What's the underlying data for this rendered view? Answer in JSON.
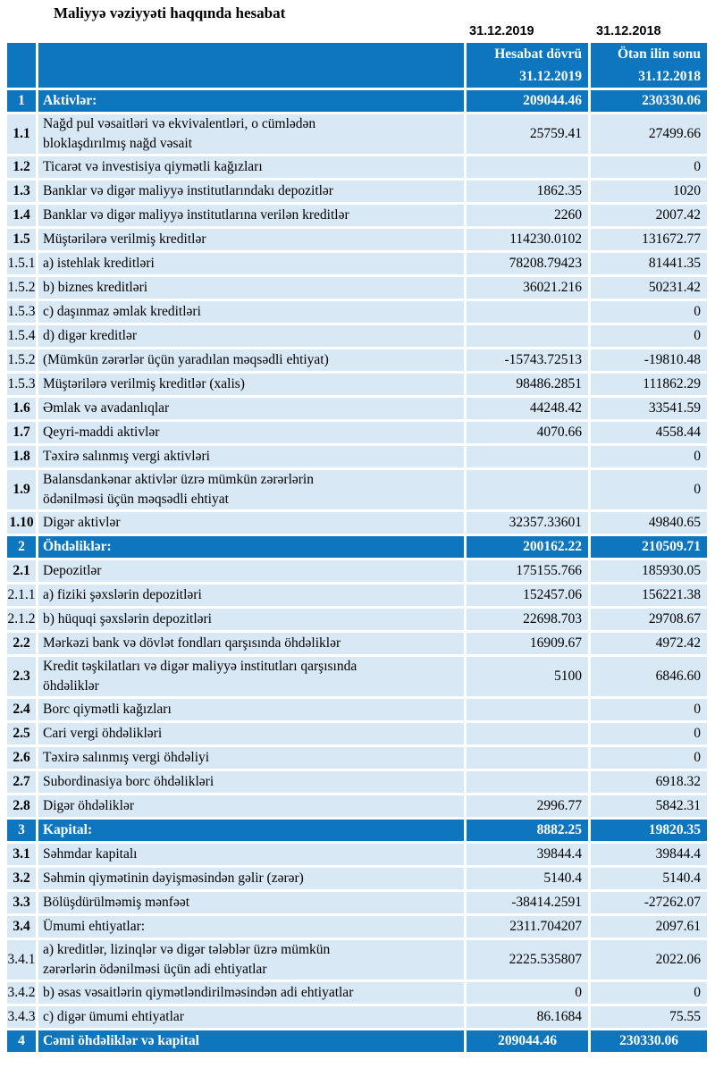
{
  "title": "Maliyyə vəziyyəti haqqında hesabat",
  "dates_above": [
    "31.12.2019",
    "31.12.2018"
  ],
  "colors": {
    "header_blue": "#0e76be",
    "row_light_blue": "#d8e8f5"
  },
  "header": {
    "period_label": "Hesabat dövrü\n31.12.2019",
    "prior_label": "Ötən ilin sonu\n31.12.2018"
  },
  "rows": [
    {
      "num": "1",
      "label": "Aktivlər:",
      "v1": "209044.46",
      "v2": "230330.06",
      "type": "section"
    },
    {
      "num": "1.1",
      "label": "Nağd pul vəsaitləri və  ekvivalentləri, o cümlədən\nbloklaşdırılmış nağd vəsait",
      "v1": "25759.41",
      "v2": "27499.66",
      "bold_num": true
    },
    {
      "num": "1.2",
      "label": "Ticarət və investisiya qiymətli kağızları",
      "v1": "",
      "v2": "0",
      "bold_num": true
    },
    {
      "num": "1.3",
      "label": "Banklar və digər maliyyə institutlarındakı depozitlər",
      "v1": "1862.35",
      "v2": "1020",
      "bold_num": true
    },
    {
      "num": "1.4",
      "label": "Banklar və digər maliyyə institutlarına verilən kreditlər",
      "v1": "2260",
      "v2": "2007.42",
      "bold_num": true
    },
    {
      "num": "1.5",
      "label": "Müştərilərə verilmiş kreditlər",
      "v1": "114230.0102",
      "v2": "131672.77",
      "bold_num": true
    },
    {
      "num": "1.5.1",
      "label": "a) istehlak kreditləri",
      "v1": "78208.79423",
      "v2": "81441.35",
      "bold_num": false
    },
    {
      "num": "1.5.2",
      "label": "b) biznes kreditləri",
      "v1": "36021.216",
      "v2": "50231.42",
      "bold_num": false
    },
    {
      "num": "1.5.3",
      "label": "c) daşınmaz əmlak kreditləri",
      "v1": "",
      "v2": "0",
      "bold_num": false
    },
    {
      "num": "1.5.4",
      "label": "d) digər kreditlər",
      "v1": "",
      "v2": "0",
      "bold_num": false
    },
    {
      "num": "1.5.2",
      "label": "(Mümkün zərərlər üçün yaradılan məqsədli ehtiyat)",
      "v1": "-15743.72513",
      "v2": "-19810.48",
      "bold_num": false
    },
    {
      "num": "1.5.3",
      "label": "Müştərilərə verilmiş kreditlər (xalis)",
      "v1": "98486.2851",
      "v2": "111862.29",
      "bold_num": false
    },
    {
      "num": "1.6",
      "label": "Əmlak və avadanlıqlar",
      "v1": "44248.42",
      "v2": "33541.59",
      "bold_num": true
    },
    {
      "num": "1.7",
      "label": "Qeyri-maddi aktivlər",
      "v1": "4070.66",
      "v2": "4558.44",
      "bold_num": true
    },
    {
      "num": "1.8",
      "label": "Təxirə salınmış vergi aktivləri",
      "v1": "",
      "v2": "0",
      "bold_num": true
    },
    {
      "num": "1.9",
      "label": "Balansdankənar aktivlər üzrə mümkün zərərlərin\nödənilməsi üçün məqsədli ehtiyat",
      "v1": "",
      "v2": "0",
      "bold_num": true
    },
    {
      "num": "1.10",
      "label": "Digər aktivlər",
      "v1": "32357.33601",
      "v2": "49840.65",
      "bold_num": true
    },
    {
      "num": "2",
      "label": "Öhdəliklər:",
      "v1": "200162.22",
      "v2": "210509.71",
      "type": "section"
    },
    {
      "num": "2.1",
      "label": "Depozitlər",
      "v1": "175155.766",
      "v2": "185930.05",
      "bold_num": true
    },
    {
      "num": "2.1.1",
      "label": "a) fiziki şəxslərin depozitləri",
      "v1": "152457.06",
      "v2": "156221.38",
      "bold_num": false
    },
    {
      "num": "2.1.2",
      "label": "b) hüquqi şəxslərin depozitləri",
      "v1": "22698.703",
      "v2": "29708.67",
      "bold_num": false
    },
    {
      "num": "2.2",
      "label": "Mərkəzi bank və dövlət fondları qarşısında öhdəliklər",
      "v1": "16909.67",
      "v2": "4972.42",
      "bold_num": true
    },
    {
      "num": "2.3",
      "label": "Kredit təşkilatları və digər maliyyə institutları qarşısında\nöhdəliklər",
      "v1": "5100",
      "v2": "6846.60",
      "bold_num": true
    },
    {
      "num": "2.4",
      "label": "Borc qiymətli kağızları",
      "v1": "",
      "v2": "0",
      "bold_num": true
    },
    {
      "num": "2.5",
      "label": "Cari vergi öhdəlikləri",
      "v1": "",
      "v2": "0",
      "bold_num": true
    },
    {
      "num": "2.6",
      "label": "Təxirə salınmış vergi öhdəliyi",
      "v1": "",
      "v2": "0",
      "bold_num": true
    },
    {
      "num": "2.7",
      "label": "Subordinasiya borc öhdəlikləri",
      "v1": "",
      "v2": "6918.32",
      "bold_num": true
    },
    {
      "num": "2.8",
      "label": "Digər öhdəliklər",
      "v1": "2996.77",
      "v2": "5842.31",
      "bold_num": true
    },
    {
      "num": "3",
      "label": "Kapital:",
      "v1": "8882.25",
      "v2": "19820.35",
      "type": "section"
    },
    {
      "num": "3.1",
      "label": "Səhmdar kapitalı",
      "v1": "39844.4",
      "v2": "39844.4",
      "bold_num": true
    },
    {
      "num": "3.2",
      "label": "Səhmin qiymətinin dəyişməsindən gəlir (zərər)",
      "v1": "5140.4",
      "v2": "5140.4",
      "bold_num": true
    },
    {
      "num": "3.3",
      "label": "Bölüşdürülməmiş mənfəət",
      "v1": "-38414.2591",
      "v2": "-27262.07",
      "bold_num": true
    },
    {
      "num": "3.4",
      "label": "Ümumi ehtiyatlar:",
      "v1": "2311.704207",
      "v2": "2097.61",
      "bold_num": true
    },
    {
      "num": "3.4.1",
      "label": "a) kreditlər, lizinqlər və digər tələblər üzrə mümkün\nzərərlərin ödənilməsi üçün adi ehtiyatlar",
      "v1": "2225.535807",
      "v2": "2022.06",
      "bold_num": false
    },
    {
      "num": "3.4.2",
      "label": "b) əsas vəsaitlərin qiymətləndirilməsindən adi ehtiyatlar",
      "v1": "0",
      "v2": "0",
      "bold_num": false
    },
    {
      "num": "3.4.3",
      "label": "c) digər ümumi ehtiyatlar",
      "v1": "86.1684",
      "v2": "75.55",
      "bold_num": false
    },
    {
      "num": "4",
      "label": "Cəmi öhdəliklər və kapital",
      "v1": "209044.46",
      "v2": "230330.06",
      "type": "total"
    }
  ]
}
